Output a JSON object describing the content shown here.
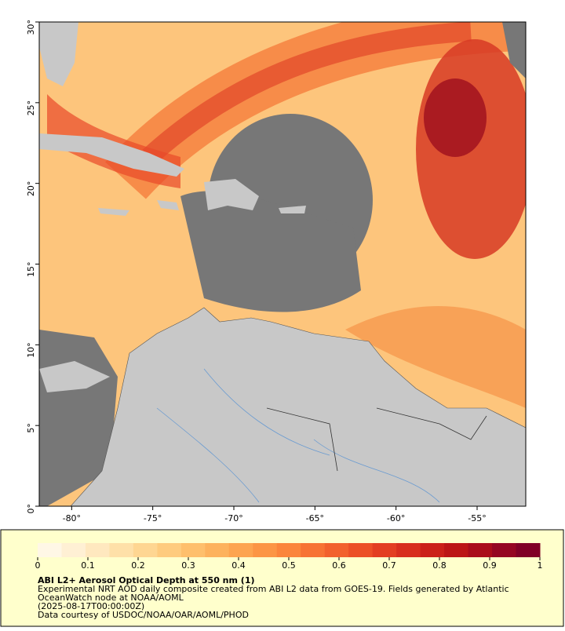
{
  "chart_data": {
    "type": "map",
    "xlim": [
      -82,
      -52
    ],
    "ylim": [
      0,
      30
    ],
    "xticks": [
      {
        "value": -80,
        "label": "-80°"
      },
      {
        "value": -75,
        "label": "-75°"
      },
      {
        "value": -70,
        "label": "-70°"
      },
      {
        "value": -65,
        "label": "-65°"
      },
      {
        "value": -60,
        "label": "-60°"
      },
      {
        "value": -55,
        "label": "-55°"
      }
    ],
    "yticks": [
      {
        "value": 0,
        "label": "0°"
      },
      {
        "value": 5,
        "label": "5°"
      },
      {
        "value": 10,
        "label": "10°"
      },
      {
        "value": 15,
        "label": "15°"
      },
      {
        "value": 20,
        "label": "20°"
      },
      {
        "value": 25,
        "label": "25°"
      },
      {
        "value": 30,
        "label": "30°"
      }
    ],
    "colorbar": {
      "lim": [
        0,
        1
      ],
      "ticks": [
        0,
        0.1,
        0.2,
        0.3,
        0.4,
        0.5,
        0.6,
        0.7,
        0.8,
        0.9,
        1
      ],
      "colors": [
        "#fff7e6",
        "#fff0d4",
        "#ffe8bf",
        "#fee0a8",
        "#fed692",
        "#fecb7e",
        "#febf6c",
        "#fdb25d",
        "#fda450",
        "#fc9545",
        "#fb853c",
        "#f77334",
        "#f2612d",
        "#ec4f27",
        "#e33e22",
        "#d82e1e",
        "#cb2019",
        "#bc1516",
        "#aa0c1b",
        "#950622",
        "#800026"
      ]
    },
    "title": "ABI L2+ Aerosol Optical Depth at 550 nm (1)",
    "description": [
      "Experimental NRT AOD daily composite created from ABI L2 data from GOES-19. Fields generated by Atlantic",
      "OceanWatch node at NOAA/AOML"
    ],
    "date": "(2025-08-17T00:00:00Z)",
    "credit": "Data courtesy of USDOC/NOAA/OAR/AOML/PHOD"
  }
}
